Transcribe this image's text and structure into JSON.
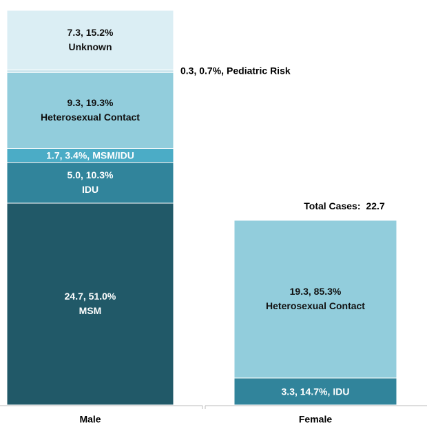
{
  "chart_data": {
    "type": "stacked_bar",
    "categories": [
      "Male",
      "Female"
    ],
    "series": [
      {
        "name": "MSM",
        "color": "#215968",
        "values": [
          24.7,
          null
        ],
        "value_labels": [
          "24.7, 51.0%",
          null
        ]
      },
      {
        "name": "IDU",
        "color": "#31849b",
        "values": [
          5.0,
          3.3
        ],
        "value_labels": [
          "5.0, 10.3%",
          "3.3, 14.7%,"
        ]
      },
      {
        "name": "MSM/IDU",
        "color": "#4bacc6",
        "values": [
          1.7,
          null
        ],
        "value_labels": [
          "1.7, 3.4%,",
          null
        ]
      },
      {
        "name": "Heterosexual Contact",
        "color": "#92cddc",
        "values": [
          9.3,
          19.3
        ],
        "value_labels": [
          "9.3, 19.3%",
          "19.3, 85.3%"
        ]
      },
      {
        "name": "Pediatric Risk",
        "color": "#c5e2eb",
        "values": [
          0.3,
          null
        ],
        "value_labels": [
          "0.3, 0.7%,",
          null
        ]
      },
      {
        "name": "Unknown",
        "color": "#dbeef4",
        "values": [
          7.3,
          null
        ],
        "value_labels": [
          "7.3, 15.2%",
          null
        ]
      }
    ],
    "annotations": [
      {
        "label": "Total Cases:",
        "value": 22.7
      }
    ]
  }
}
